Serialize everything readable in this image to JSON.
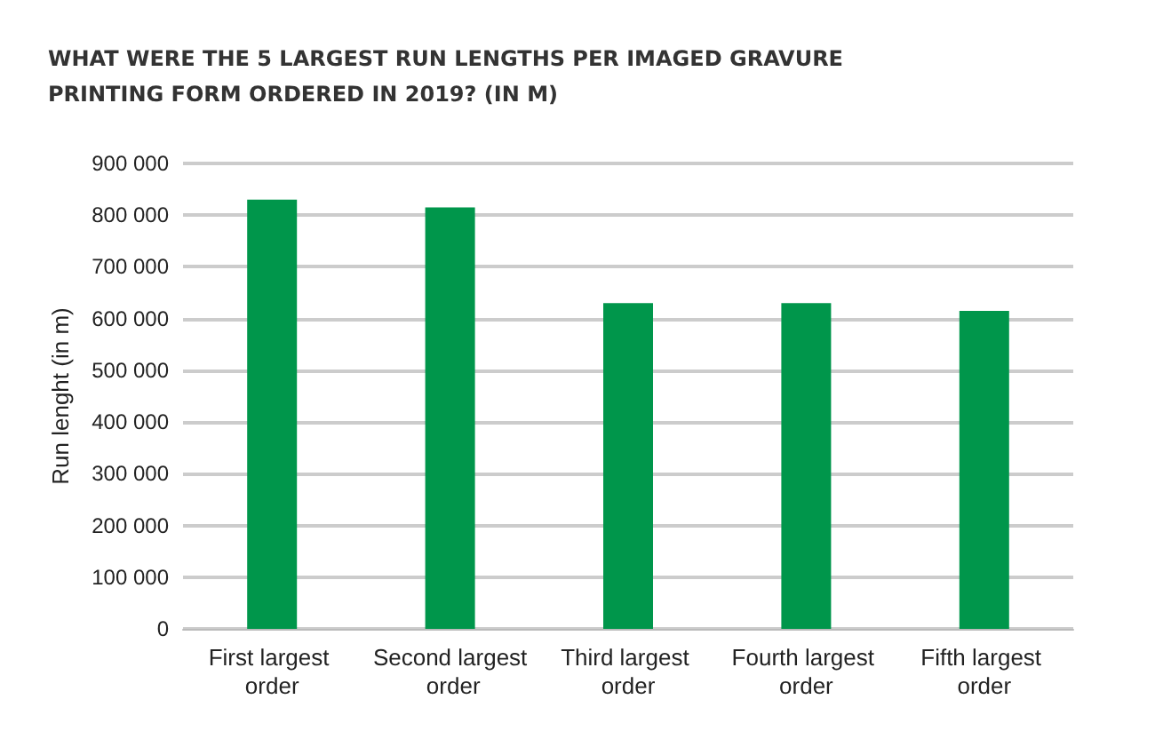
{
  "chart_data": {
    "type": "bar",
    "title": "WHAT WERE THE 5 LARGEST RUN LENGTHS PER IMAGED GRAVURE\nPRINTING FORM ORDERED IN 2019? (IN M)",
    "ylabel": "Run lenght (in m)",
    "categories": [
      "First largest order",
      "Second largest order",
      "Third largest order",
      "Fourth largest order",
      "Fifth largest order"
    ],
    "values": [
      830000,
      815000,
      630000,
      630000,
      615000
    ],
    "color": "#00964b",
    "ylim": [
      0,
      900000
    ],
    "yticks": [
      0,
      {
        "value": 100000,
        "label": "100 000"
      },
      {
        "value": 200000,
        "label": "200 000"
      },
      {
        "value": 300000,
        "label": "300 000"
      },
      {
        "value": 400000,
        "label": "400 000"
      },
      {
        "value": 500000,
        "label": "500 000"
      },
      {
        "value": 600000,
        "label": "600 000"
      },
      {
        "value": 700000,
        "label": "700 000"
      },
      {
        "value": 800000,
        "label": "800 000"
      },
      {
        "value": 900000,
        "label": "900 000"
      }
    ],
    "grid": "y"
  }
}
